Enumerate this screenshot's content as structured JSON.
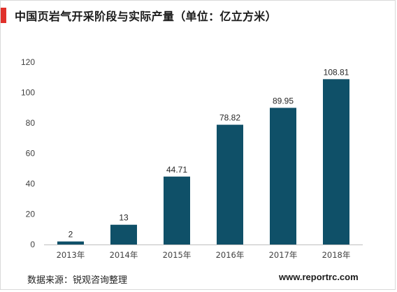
{
  "header": {
    "title": "中国页岩气开采阶段与实际产量（单位：亿立方米）"
  },
  "chart_data": {
    "type": "bar",
    "title": "中国页岩气开采阶段与实际产量（单位：亿立方米）",
    "xlabel": "",
    "ylabel": "",
    "categories": [
      "2013年",
      "2014年",
      "2015年",
      "2016年",
      "2017年",
      "2018年"
    ],
    "values": [
      2,
      13,
      44.71,
      78.82,
      89.95,
      108.81
    ],
    "value_labels": [
      "2",
      "13",
      "44.71",
      "78.82",
      "89.95",
      "108.81"
    ],
    "ylim": [
      0,
      120
    ],
    "yticks": [
      0,
      20,
      40,
      60,
      80,
      100,
      120
    ],
    "grid": false,
    "legend": "none",
    "bar_color": "#0f5068"
  },
  "footer": {
    "source": "数据来源：锐观咨询整理",
    "website": "www.reportrc.com"
  },
  "colors": {
    "accent": "#e0312b",
    "bar": "#0f5068",
    "axis": "#bfbfbf"
  }
}
